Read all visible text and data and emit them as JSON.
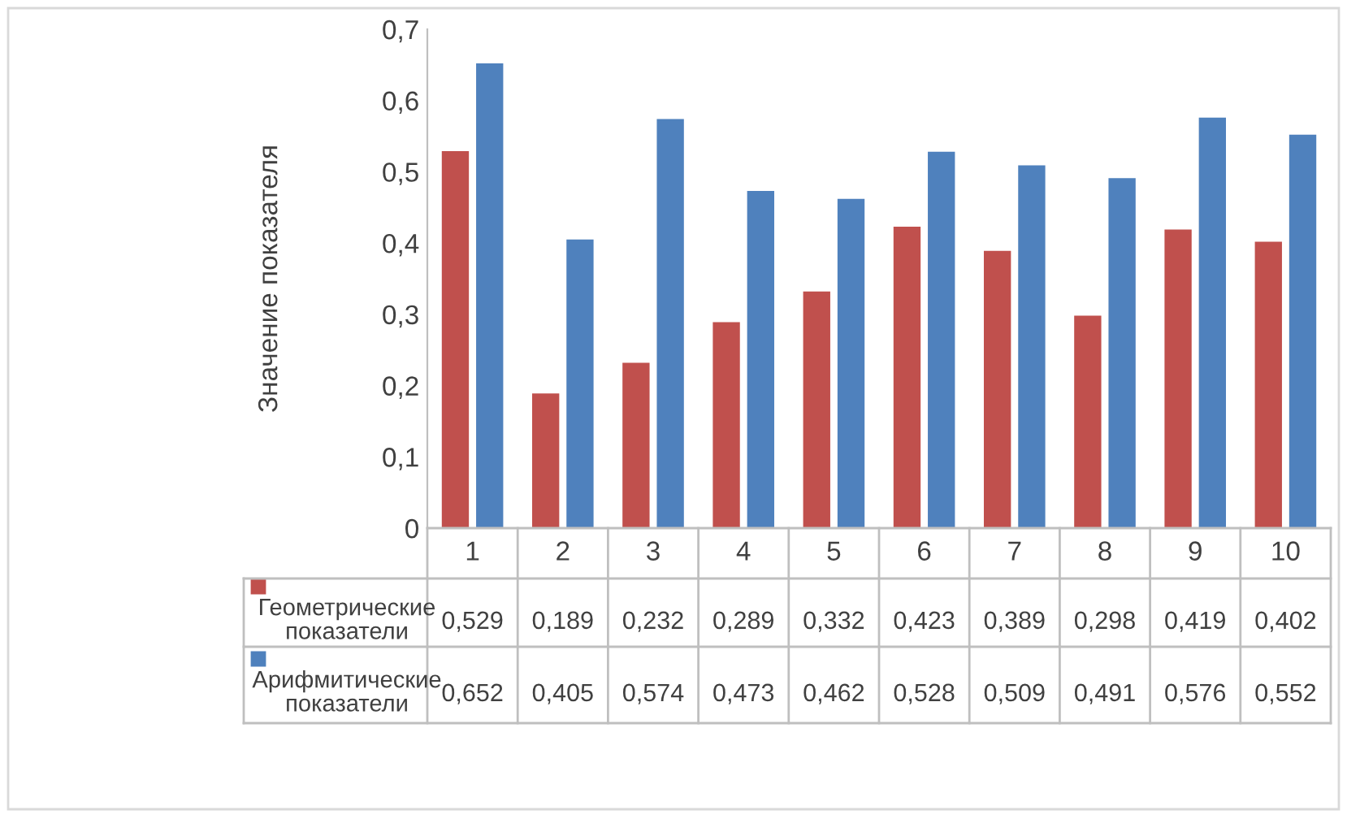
{
  "chart_data": {
    "type": "bar",
    "ylabel": "Значение показателя",
    "categories": [
      "1",
      "2",
      "3",
      "4",
      "5",
      "6",
      "7",
      "8",
      "9",
      "10"
    ],
    "series": [
      {
        "name": "Геометрические показатели",
        "color": "#c0504d",
        "values": [
          0.529,
          0.189,
          0.232,
          0.289,
          0.332,
          0.423,
          0.389,
          0.298,
          0.419,
          0.402
        ],
        "value_labels": [
          "0,529",
          "0,189",
          "0,232",
          "0,289",
          "0,332",
          "0,423",
          "0,389",
          "0,298",
          "0,419",
          "0,402"
        ]
      },
      {
        "name": "Арифмитические показатели",
        "color": "#4f81bd",
        "values": [
          0.652,
          0.405,
          0.574,
          0.473,
          0.462,
          0.528,
          0.509,
          0.491,
          0.576,
          0.552
        ],
        "value_labels": [
          "0,652",
          "0,405",
          "0,574",
          "0,473",
          "0,462",
          "0,528",
          "0,509",
          "0,491",
          "0,576",
          "0,552"
        ]
      }
    ],
    "ylim": [
      0,
      0.7
    ],
    "yticks": [
      0,
      {
        "value": 0.1,
        "label": "0,1"
      },
      {
        "value": 0.2,
        "label": "0,2"
      },
      {
        "value": 0.3,
        "label": "0,3"
      },
      {
        "value": 0.4,
        "label": "0,4"
      },
      {
        "value": 0.5,
        "label": "0,5"
      },
      {
        "value": 0.6,
        "label": "0,6"
      },
      {
        "value": 0.7,
        "label": "0,7"
      }
    ],
    "grid": false,
    "legend": "bottom"
  }
}
